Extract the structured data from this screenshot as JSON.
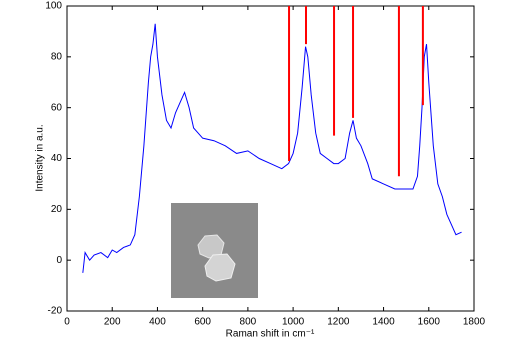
{
  "chart_data": {
    "type": "line",
    "xlabel": "Raman shift in cm⁻¹",
    "ylabel": "Intensity in a.u.",
    "x": [
      70,
      80,
      100,
      120,
      150,
      180,
      200,
      220,
      250,
      280,
      300,
      320,
      340,
      360,
      370,
      380,
      390,
      400,
      420,
      440,
      460,
      480,
      500,
      520,
      540,
      560,
      580,
      600,
      650,
      700,
      750,
      800,
      850,
      900,
      950,
      980,
      1000,
      1020,
      1040,
      1055,
      1065,
      1080,
      1100,
      1120,
      1150,
      1180,
      1200,
      1230,
      1250,
      1265,
      1280,
      1300,
      1330,
      1350,
      1400,
      1450,
      1500,
      1530,
      1550,
      1560,
      1570,
      1580,
      1590,
      1600,
      1620,
      1640,
      1660,
      1680,
      1700,
      1720,
      1745
    ],
    "values": [
      -5,
      3,
      0,
      2,
      3,
      1,
      4,
      3,
      5,
      6,
      10,
      25,
      45,
      70,
      80,
      85,
      93,
      80,
      65,
      55,
      52,
      58,
      62,
      66,
      60,
      52,
      50,
      48,
      47,
      45,
      42,
      43,
      40,
      38,
      36,
      38,
      42,
      50,
      68,
      84,
      80,
      65,
      50,
      42,
      40,
      38,
      38,
      40,
      50,
      55,
      48,
      45,
      38,
      32,
      30,
      28,
      28,
      28,
      33,
      45,
      60,
      80,
      85,
      70,
      45,
      30,
      25,
      18,
      14,
      10,
      11
    ],
    "color": "#0000ff",
    "markers": {
      "x": [
        982,
        1057,
        1181,
        1265,
        1468,
        1574
      ],
      "values": [
        39,
        85,
        49,
        56,
        33,
        61
      ],
      "color": "#ff0000"
    },
    "xlim": [
      0,
      1800
    ],
    "xticks": [
      0,
      200,
      400,
      600,
      800,
      1000,
      1200,
      1400,
      1600,
      1800
    ],
    "ylim": [
      -20,
      100
    ],
    "yticks": [
      -20,
      0,
      20,
      40,
      60,
      80,
      100
    ],
    "grid": false
  }
}
